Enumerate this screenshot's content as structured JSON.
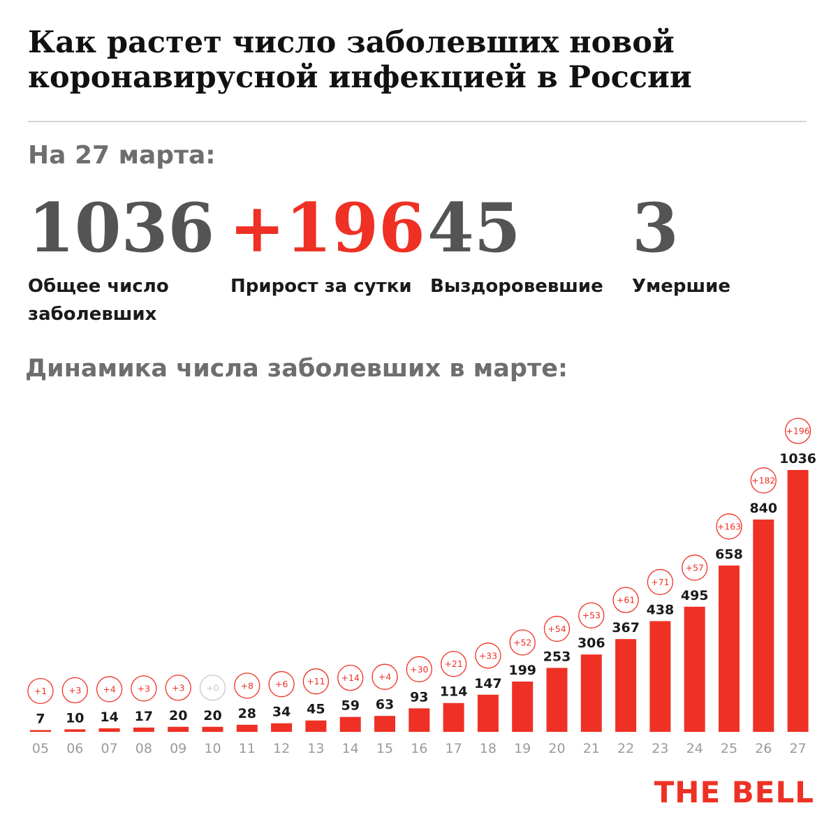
{
  "title": "Как растет число заболевших новой коронавирусной инфекцией в России",
  "date_label": "На 27 марта:",
  "stats": [
    {
      "value": "1036",
      "label": "Общее число\nзаболевших"
    },
    {
      "value": "+196",
      "label": "Прирост за сутки"
    },
    {
      "value": "45",
      "label": "Выздоровевшие"
    },
    {
      "value": "3",
      "label": "Умершие"
    }
  ],
  "chart_title": "Динамика числа заболевших в марте:",
  "chart_data": {
    "type": "bar",
    "categories": [
      "05",
      "06",
      "07",
      "08",
      "09",
      "10",
      "11",
      "12",
      "13",
      "14",
      "15",
      "16",
      "17",
      "18",
      "19",
      "20",
      "21",
      "22",
      "23",
      "24",
      "25",
      "26",
      "27"
    ],
    "values": [
      7,
      10,
      14,
      17,
      20,
      20,
      28,
      34,
      45,
      59,
      63,
      93,
      114,
      147,
      199,
      253,
      306,
      367,
      438,
      495,
      658,
      840,
      1036
    ],
    "increments": [
      "+1",
      "+3",
      "+4",
      "+3",
      "+3",
      "+0",
      "+8",
      "+6",
      "+11",
      "+14",
      "+4",
      "+30",
      "+21",
      "+33",
      "+52",
      "+54",
      "+53",
      "+61",
      "+71",
      "+57",
      "+163",
      "+182",
      "+196"
    ],
    "ylim": [
      0,
      1036
    ]
  },
  "colors": {
    "accent": "#ee3124",
    "muted": "#c8c8c8",
    "title_gray": "#6e6e6e",
    "axis_label": "#9a9a9a"
  },
  "logo": "THE BELL"
}
